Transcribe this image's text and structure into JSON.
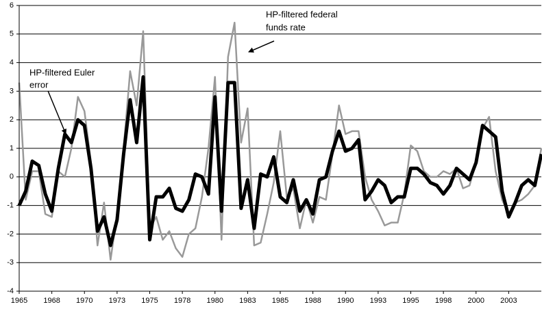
{
  "chart_data": {
    "type": "line",
    "annotations": [
      [
        "HP-filtered federal",
        "funds rate"
      ],
      [
        "HP-filtered Euler",
        "error"
      ]
    ],
    "x": [
      1965.0,
      1965.5,
      1966.0,
      1966.5,
      1967.0,
      1967.5,
      1968.0,
      1968.5,
      1969.0,
      1969.5,
      1970.0,
      1970.5,
      1971.0,
      1971.5,
      1972.0,
      1972.5,
      1973.0,
      1973.5,
      1974.0,
      1974.5,
      1975.0,
      1975.5,
      1976.0,
      1976.5,
      1977.0,
      1977.5,
      1978.0,
      1978.5,
      1979.0,
      1979.5,
      1980.0,
      1980.5,
      1981.0,
      1981.5,
      1982.0,
      1982.5,
      1983.0,
      1983.5,
      1984.0,
      1984.5,
      1985.0,
      1985.5,
      1986.0,
      1986.5,
      1987.0,
      1987.5,
      1988.0,
      1988.5,
      1989.0,
      1989.5,
      1990.0,
      1990.5,
      1991.0,
      1991.5,
      1992.0,
      1992.5,
      1993.0,
      1993.5,
      1994.0,
      1994.5,
      1995.0,
      1995.5,
      1996.0,
      1996.5,
      1997.0,
      1997.5,
      1998.0,
      1998.5,
      1999.0,
      1999.5,
      2000.0,
      2000.5,
      2001.0,
      2001.5,
      2002.0,
      2002.5,
      2003.0,
      2003.5,
      2004.0,
      2004.5,
      2005.0
    ],
    "series": [
      {
        "color": "#999999",
        "values": [
          3.3,
          -0.8,
          0.2,
          0.2,
          -1.3,
          -1.4,
          0.2,
          0.0,
          1.0,
          2.8,
          2.3,
          0.5,
          -2.4,
          -0.9,
          -2.9,
          -1.3,
          1.0,
          3.7,
          2.5,
          5.1,
          -1.8,
          -1.4,
          -2.2,
          -1.9,
          -2.5,
          -2.8,
          -2.0,
          -1.8,
          -0.7,
          1.0,
          3.5,
          -2.2,
          4.2,
          5.4,
          1.2,
          2.4,
          -2.4,
          -2.3,
          -1.3,
          -0.2,
          1.6,
          -0.7,
          -0.4,
          -1.8,
          -0.8,
          -1.6,
          -0.7,
          -0.8,
          0.8,
          2.5,
          1.5,
          1.6,
          1.6,
          0.0,
          -0.8,
          -1.2,
          -1.7,
          -1.6,
          -1.6,
          -0.6,
          1.1,
          0.9,
          0.2,
          0.0,
          0.0,
          0.2,
          0.1,
          0.3,
          -0.4,
          -0.3,
          0.5,
          1.7,
          2.1,
          0.2,
          -0.8,
          -1.3,
          -0.9,
          -0.8,
          -0.6,
          -0.3,
          1.0
        ]
      },
      {
        "color": "#000000",
        "values": [
          -1.0,
          -0.5,
          0.55,
          0.4,
          -0.6,
          -1.2,
          0.3,
          1.5,
          1.2,
          2.0,
          1.8,
          0.3,
          -1.9,
          -1.4,
          -2.4,
          -1.5,
          0.8,
          2.7,
          1.2,
          3.5,
          -2.2,
          -0.7,
          -0.7,
          -0.4,
          -1.1,
          -1.2,
          -0.8,
          0.1,
          0.0,
          -0.6,
          2.8,
          -1.2,
          3.3,
          3.3,
          -1.1,
          -0.1,
          -1.8,
          0.1,
          0.0,
          0.7,
          -0.7,
          -0.9,
          -0.1,
          -1.2,
          -0.8,
          -1.3,
          -0.1,
          0.0,
          0.9,
          1.6,
          0.9,
          1.0,
          1.3,
          -0.8,
          -0.5,
          -0.1,
          -0.3,
          -0.9,
          -0.7,
          -0.7,
          0.3,
          0.3,
          0.1,
          -0.2,
          -0.3,
          -0.6,
          -0.3,
          0.3,
          0.1,
          -0.1,
          0.5,
          1.8,
          1.6,
          1.4,
          -0.5,
          -1.4,
          -0.9,
          -0.3,
          -0.1,
          -0.3,
          0.8
        ]
      }
    ],
    "xlim": [
      1965,
      2005
    ],
    "xticks": [
      {
        "value": 1965,
        "label": "1965"
      },
      {
        "value": 1967.5,
        "label": "1968"
      },
      {
        "value": 1970,
        "label": "1970"
      },
      {
        "value": 1972.5,
        "label": "1973"
      },
      {
        "value": 1975,
        "label": "1975"
      },
      {
        "value": 1977.5,
        "label": "1978"
      },
      {
        "value": 1980,
        "label": "1980"
      },
      {
        "value": 1982.5,
        "label": "1983"
      },
      {
        "value": 1985,
        "label": "1985"
      },
      {
        "value": 1987.5,
        "label": "1988"
      },
      {
        "value": 1990,
        "label": "1990"
      },
      {
        "value": 1992.5,
        "label": "1993"
      },
      {
        "value": 1995,
        "label": "1995"
      },
      {
        "value": 1997.5,
        "label": "1998"
      },
      {
        "value": 2000,
        "label": "2000"
      },
      {
        "value": 2002.5,
        "label": "2003"
      }
    ],
    "ylim": [
      -4,
      6
    ],
    "yticks": [
      -4,
      -3,
      -2,
      -1,
      0,
      1,
      2,
      3,
      4,
      5,
      6
    ],
    "grid": true
  }
}
